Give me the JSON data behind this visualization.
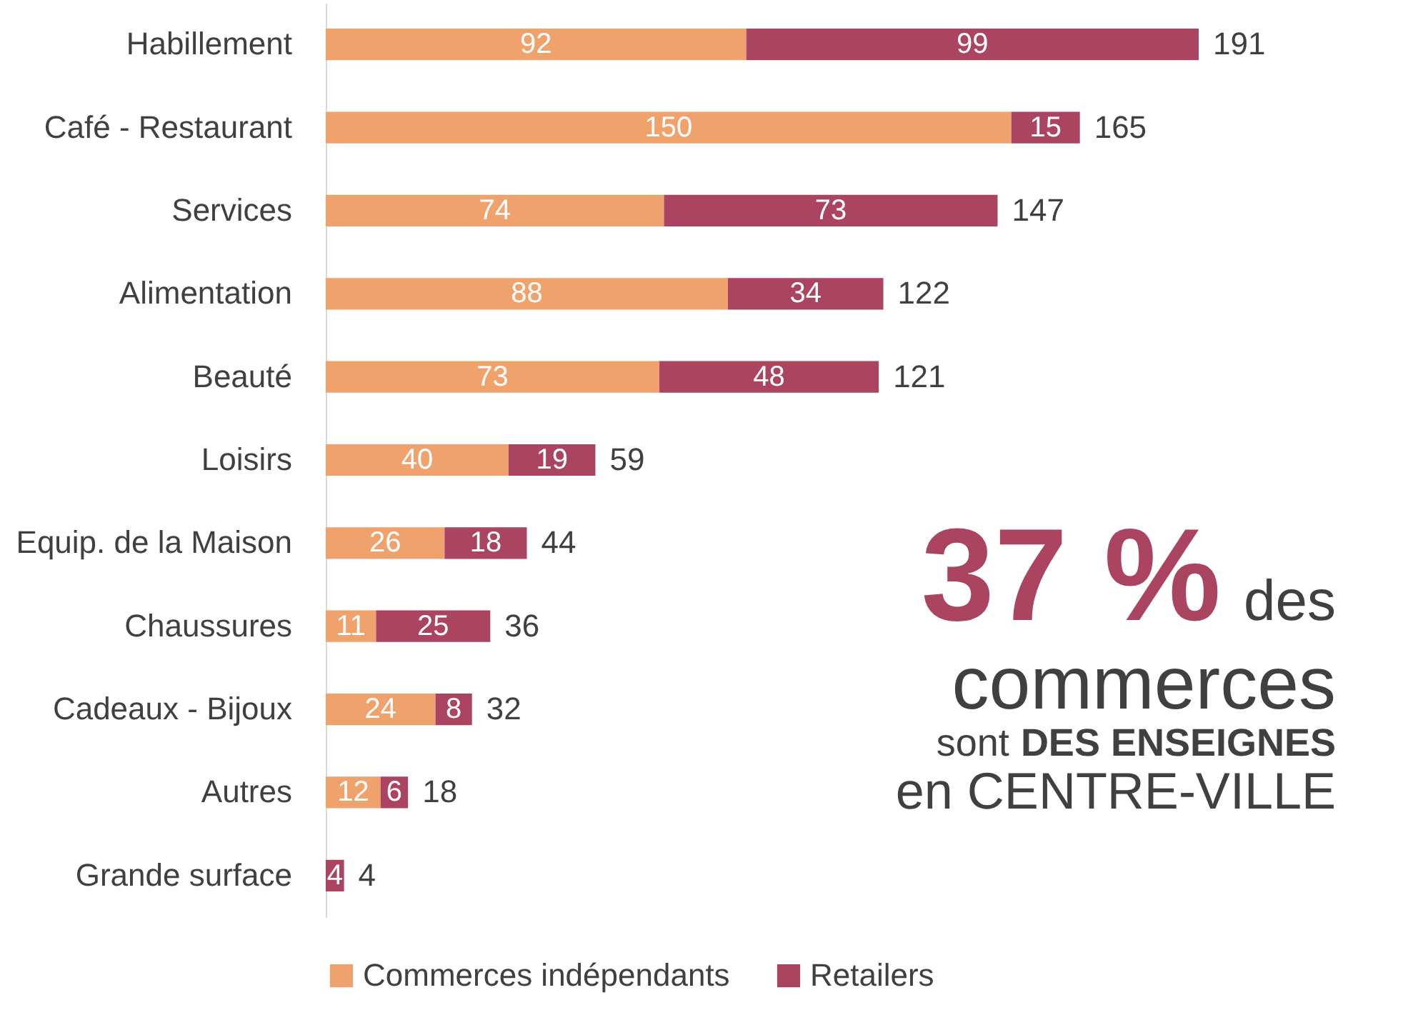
{
  "chart_data": {
    "type": "bar",
    "orientation": "horizontal",
    "stacked": true,
    "data_labels": true,
    "legend": "bottom",
    "tick_labels": "y",
    "grid": false,
    "categories": [
      "Habillement",
      "Café - Restaurant",
      "Services",
      "Alimentation",
      "Beauté",
      "Loisirs",
      "Equip. de la Maison",
      "Chaussures",
      "Cadeaux - Bijoux",
      "Autres",
      "Grande surface"
    ],
    "series": [
      {
        "name": "Commerces indépendants",
        "color": "#f0a26c",
        "values": [
          92,
          150,
          74,
          88,
          73,
          40,
          26,
          11,
          24,
          12,
          null
        ]
      },
      {
        "name": "Retailers",
        "color": "#ab4460",
        "values": [
          99,
          15,
          73,
          34,
          48,
          19,
          18,
          25,
          8,
          6,
          4
        ]
      }
    ],
    "totals": [
      "191",
      "165",
      "147",
      "122",
      "121",
      "59",
      "44",
      "36",
      "32",
      "18",
      "4"
    ],
    "annotations": [
      "37 %",
      "des",
      "commerces",
      "sont",
      "DES ENSEIGNES",
      "en CENTRE-VILLE"
    ]
  }
}
